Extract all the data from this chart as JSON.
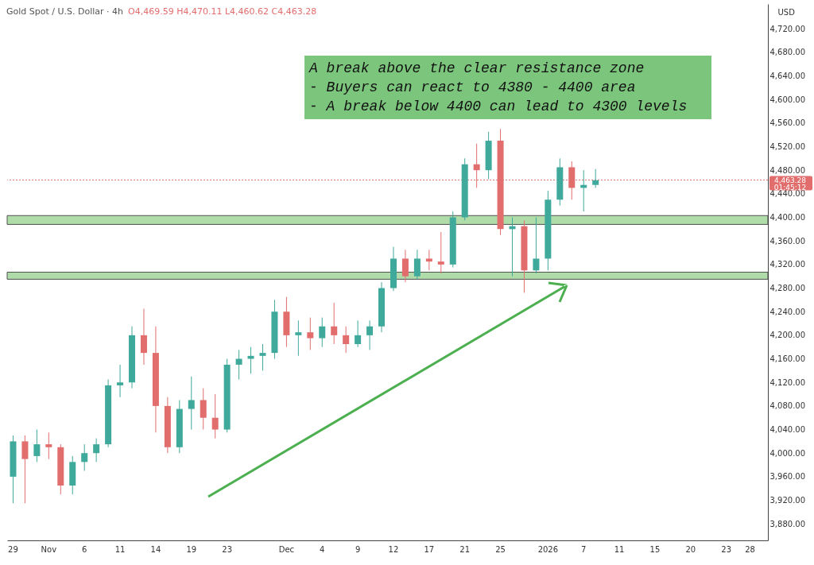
{
  "chart_data": {
    "type": "candlestick",
    "title": "Gold Spot / U.S. Dollar · 4h",
    "subtitle": "O4,469.59  H4,470.11  L4,460.62  C4,463.28",
    "ylabel": "USD",
    "categories": [
      "29",
      null,
      null,
      "Nov",
      null,
      null,
      "6",
      null,
      null,
      "11",
      null,
      null,
      "14",
      null,
      null,
      "19",
      null,
      null,
      "23",
      null,
      null,
      null,
      null,
      "Dec",
      null,
      null,
      "4",
      null,
      null,
      "9",
      null,
      null,
      "12",
      null,
      null,
      "17",
      null,
      null,
      "21",
      null,
      null,
      "25",
      null,
      null,
      null,
      "2026",
      null,
      null,
      "7",
      null,
      null,
      "11",
      null,
      null,
      "15",
      null,
      null,
      "20",
      null,
      null,
      "23",
      null,
      "28",
      null
    ],
    "ohlc": [
      [
        3960,
        4030,
        3915,
        4020
      ],
      [
        4020,
        4030,
        3915,
        3990
      ],
      [
        3995,
        4040,
        3985,
        4015
      ],
      [
        4015,
        4035,
        3990,
        4010
      ],
      [
        4010,
        4015,
        3930,
        3945
      ],
      [
        3945,
        3995,
        3930,
        3985
      ],
      [
        3985,
        4015,
        3970,
        4000
      ],
      [
        4000,
        4025,
        3985,
        4015
      ],
      [
        4015,
        4125,
        4010,
        4115
      ],
      [
        4115,
        4150,
        4095,
        4120
      ],
      [
        4120,
        4215,
        4110,
        4200
      ],
      [
        4200,
        4245,
        4150,
        4170
      ],
      [
        4170,
        4215,
        4035,
        4080
      ],
      [
        4080,
        4095,
        4000,
        4010
      ],
      [
        4010,
        4090,
        4000,
        4075
      ],
      [
        4075,
        4130,
        4040,
        4090
      ],
      [
        4090,
        4110,
        4040,
        4060
      ],
      [
        4060,
        4100,
        4025,
        4040
      ],
      [
        4040,
        4160,
        4035,
        4150
      ],
      [
        4150,
        4175,
        4125,
        4160
      ],
      [
        4160,
        4180,
        4135,
        4165
      ],
      [
        4165,
        4185,
        4140,
        4170
      ],
      [
        4170,
        4260,
        4160,
        4240
      ],
      [
        4240,
        4265,
        4180,
        4200
      ],
      [
        4200,
        4225,
        4165,
        4205
      ],
      [
        4205,
        4230,
        4175,
        4195
      ],
      [
        4195,
        4230,
        4180,
        4215
      ],
      [
        4215,
        4255,
        4185,
        4200
      ],
      [
        4200,
        4215,
        4170,
        4185
      ],
      [
        4185,
        4225,
        4180,
        4200
      ],
      [
        4200,
        4225,
        4175,
        4215
      ],
      [
        4215,
        4290,
        4205,
        4280
      ],
      [
        4280,
        4350,
        4275,
        4330
      ],
      [
        4330,
        4345,
        4290,
        4300
      ],
      [
        4300,
        4345,
        4295,
        4330
      ],
      [
        4330,
        4345,
        4310,
        4325
      ],
      [
        4325,
        4375,
        4305,
        4320
      ],
      [
        4320,
        4410,
        4315,
        4400
      ],
      [
        4400,
        4500,
        4395,
        4490
      ],
      [
        4490,
        4525,
        4450,
        4480
      ],
      [
        4480,
        4545,
        4465,
        4530
      ],
      [
        4530,
        4550,
        4370,
        4380
      ],
      [
        4380,
        4400,
        4300,
        4385
      ],
      [
        4385,
        4395,
        4272,
        4310
      ],
      [
        4310,
        4400,
        4305,
        4330
      ],
      [
        4330,
        4445,
        4310,
        4430
      ],
      [
        4430,
        4500,
        4420,
        4485
      ],
      [
        4485,
        4495,
        4430,
        4450
      ],
      [
        4450,
        4480,
        4410,
        4455
      ],
      [
        4455,
        4482,
        4450,
        4463
      ],
      null,
      null,
      null,
      null,
      null,
      null,
      null,
      null,
      null,
      null,
      null,
      null,
      null,
      null
    ],
    "colors": [
      "#3fa99b",
      "#e26d6d",
      "#3fa99b",
      "#e26d6d",
      "#e26d6d",
      "#3fa99b",
      "#3fa99b",
      "#3fa99b",
      "#3fa99b",
      "#3fa99b",
      "#3fa99b",
      "#e26d6d",
      "#e26d6d",
      "#e26d6d",
      "#3fa99b",
      "#3fa99b",
      "#e26d6d",
      "#e26d6d",
      "#3fa99b",
      "#3fa99b",
      "#3fa99b",
      "#3fa99b",
      "#3fa99b",
      "#e26d6d",
      "#3fa99b",
      "#e26d6d",
      "#3fa99b",
      "#e26d6d",
      "#e26d6d",
      "#3fa99b",
      "#3fa99b",
      "#3fa99b",
      "#3fa99b",
      "#e26d6d",
      "#3fa99b",
      "#e26d6d",
      "#e26d6d",
      "#3fa99b",
      "#3fa99b",
      "#e26d6d",
      "#3fa99b",
      "#e26d6d",
      "#3fa99b",
      "#e26d6d",
      "#3fa99b",
      "#3fa99b",
      "#3fa99b",
      "#e26d6d",
      "#3fa99b",
      "#3fa99b",
      null,
      null,
      null,
      null,
      null,
      null,
      null,
      null,
      null,
      null,
      null,
      null,
      null,
      null
    ],
    "ylim": [
      3852,
      4762
    ],
    "yticks": [
      {
        "value": 3880,
        "label": "3,880.00"
      },
      {
        "value": 3920,
        "label": "3,920.00"
      },
      {
        "value": 3960,
        "label": "3,960.00"
      },
      {
        "value": 4000,
        "label": "4,000.00"
      },
      {
        "value": 4040,
        "label": "4,040.00"
      },
      {
        "value": 4080,
        "label": "4,080.00"
      },
      {
        "value": 4120,
        "label": "4,120.00"
      },
      {
        "value": 4160,
        "label": "4,160.00"
      },
      {
        "value": 4200,
        "label": "4,200.00"
      },
      {
        "value": 4240,
        "label": "4,240.00"
      },
      {
        "value": 4280,
        "label": "4,280.00"
      },
      {
        "value": 4320,
        "label": "4,320.00"
      },
      {
        "value": 4360,
        "label": "4,360.00"
      },
      {
        "value": 4400,
        "label": "4,400.00"
      },
      {
        "value": 4440,
        "label": "4,440.00"
      },
      {
        "value": 4480,
        "label": "4,480.00"
      },
      {
        "value": 4520,
        "label": "4,520.00"
      },
      {
        "value": 4560,
        "label": "4,560.00"
      },
      {
        "value": 4600,
        "label": "4,600.00"
      },
      {
        "value": 4640,
        "label": "4,640.00"
      },
      {
        "value": 4680,
        "label": "4,680.00"
      },
      {
        "value": 4720,
        "label": "4,720.00"
      }
    ],
    "ref_lines": [
      {
        "axis": "y",
        "value": 4463.28,
        "label": "4,463.28",
        "color": "#e26d6d",
        "line_style": "dotted"
      }
    ],
    "bands": [
      {
        "axis": "y",
        "from": 4388,
        "to": 4403,
        "color": "#a3d69c"
      },
      {
        "axis": "y",
        "from": 4295,
        "to": 4307,
        "color": "#a3d69c"
      }
    ],
    "annotations": [
      "A break above the clear resistance zone",
      "- Buyers can react to 4380 - 4400 area",
      "- A break below 4400 can lead to 4300 levels",
      "01:45:12"
    ]
  }
}
